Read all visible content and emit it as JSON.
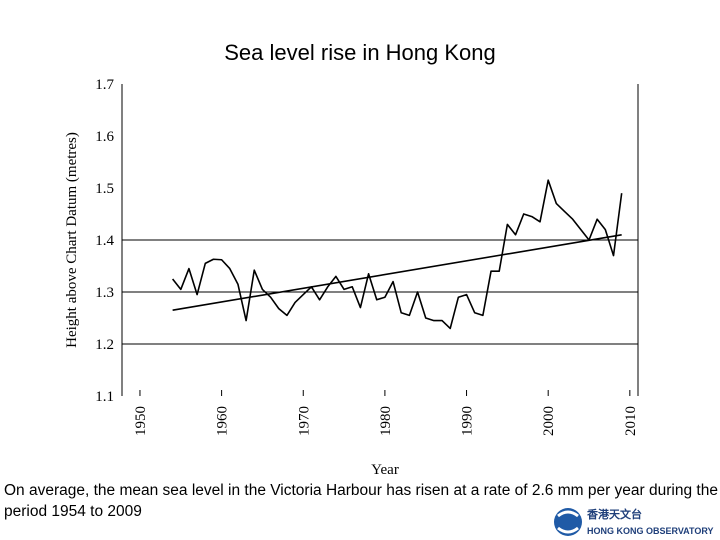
{
  "chart_data": {
    "type": "line",
    "title": "Sea level rise in Hong Kong",
    "y_label": "Height above Chart Datum (metres)",
    "x_label": "Year",
    "xlim": [
      1947.8,
      2011
    ],
    "xticks": [
      1950,
      1960,
      1970,
      1980,
      1990,
      2000,
      2010
    ],
    "ylim": [
      1.1,
      1.7
    ],
    "yticks": [
      1.1,
      1.2,
      1.3,
      1.4,
      1.5,
      1.6,
      1.7
    ],
    "grid_lines": [
      1.2,
      1.3,
      1.4
    ],
    "series": [
      {
        "color": "#000000",
        "x": [
          1954,
          1955,
          1956,
          1957,
          1958,
          1959,
          1960,
          1961,
          1962,
          1963,
          1964,
          1965,
          1966,
          1967,
          1968,
          1969,
          1970,
          1971,
          1972,
          1973,
          1974,
          1975,
          1976,
          1977,
          1978,
          1979,
          1980,
          1981,
          1982,
          1983,
          1984,
          1985,
          1986,
          1987,
          1988,
          1989,
          1990,
          1991,
          1992,
          1993,
          1994,
          1995,
          1996,
          1997,
          1998,
          1999,
          2000,
          2001,
          2002,
          2003,
          2004,
          2005,
          2006,
          2007,
          2008,
          2009
        ],
        "values": [
          1.325,
          1.305,
          1.345,
          1.295,
          1.355,
          1.363,
          1.362,
          1.345,
          1.315,
          1.245,
          1.342,
          1.305,
          1.29,
          1.268,
          1.255,
          1.28,
          1.295,
          1.31,
          1.285,
          1.31,
          1.33,
          1.305,
          1.31,
          1.27,
          1.335,
          1.285,
          1.29,
          1.32,
          1.26,
          1.255,
          1.3,
          1.25,
          1.245,
          1.245,
          1.23,
          1.29,
          1.295,
          1.26,
          1.255,
          1.34,
          1.34,
          1.43,
          1.41,
          1.45,
          1.445,
          1.435,
          1.515,
          1.47,
          1.455,
          1.44,
          1.42,
          1.4,
          1.44,
          1.42,
          1.37,
          1.49
        ]
      },
      {
        "color": "#000000",
        "x": [
          1954,
          2009
        ],
        "values": [
          1.265,
          1.41
        ]
      }
    ],
    "caption": "On average, the mean sea level in the Victoria Harbour has risen at a rate of 2.6 mm per year during the period 1954 to 2009"
  },
  "logo": {
    "chinese": "香港天文台",
    "english": "HONG KONG OBSERVATORY"
  }
}
